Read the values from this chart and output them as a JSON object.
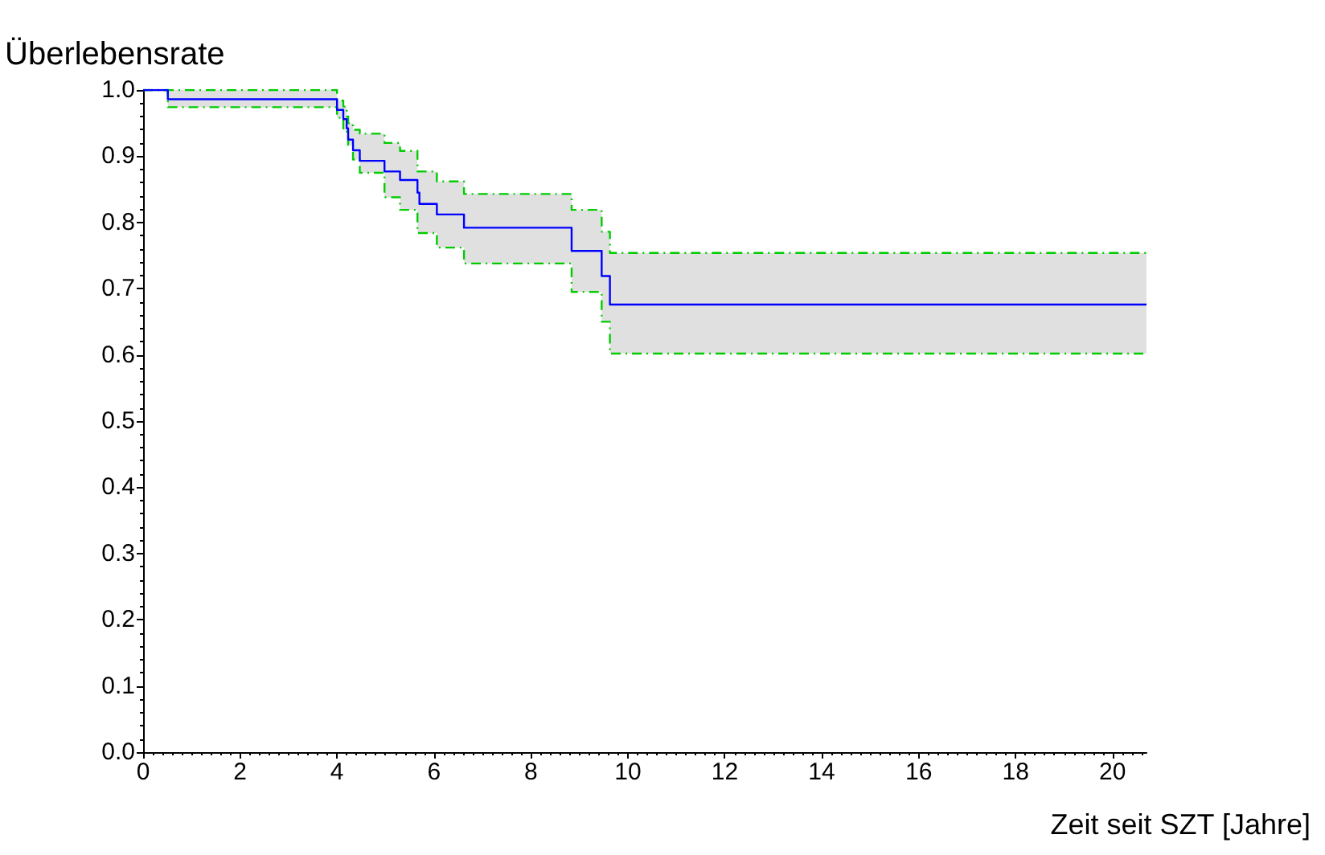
{
  "chart_data": {
    "type": "step",
    "ylabel": "Überlebensrate",
    "xlabel": "Zeit seit SZT [Jahre]",
    "xlim": [
      0,
      20.7
    ],
    "xticks": [
      0,
      2,
      4,
      6,
      8,
      10,
      12,
      14,
      16,
      18,
      20
    ],
    "ylim": [
      0,
      1
    ],
    "yticks": [
      {
        "value": 0,
        "label": "0.0"
      },
      0.1,
      0.2,
      0.3,
      0.4,
      0.5,
      0.6,
      0.7,
      0.8,
      0.9,
      {
        "value": 1,
        "label": "1.0"
      }
    ],
    "grid": false,
    "marker": "none",
    "line_style": "solid",
    "series": [
      {
        "color": "#0000ff",
        "x": [
          0,
          0.51,
          4.0,
          4.13,
          4.2,
          4.23,
          4.33,
          4.47,
          4.98,
          5.3,
          5.66,
          5.7,
          6.06,
          6.62,
          8.84,
          9.46,
          9.63,
          20.7
        ],
        "values": [
          1.0,
          0.986,
          0.97,
          0.956,
          0.942,
          0.925,
          0.909,
          0.893,
          0.877,
          0.864,
          0.845,
          0.828,
          0.812,
          0.792,
          0.757,
          0.719,
          0.676,
          0.676
        ],
        "upper": [
          1.0,
          1.0,
          0.984,
          0.975,
          0.96,
          0.95,
          0.94,
          0.934,
          0.92,
          0.908,
          0.877,
          0.877,
          0.862,
          0.843,
          0.819,
          0.786,
          0.754,
          0.754
        ],
        "lower": [
          1.0,
          0.974,
          0.958,
          0.94,
          0.93,
          0.917,
          0.895,
          0.875,
          0.838,
          0.819,
          0.784,
          0.784,
          0.762,
          0.738,
          0.695,
          0.65,
          0.602,
          0.602
        ]
      },
      {
        "color": "#00cc00",
        "line_style": "dashed",
        "x": [
          0,
          0.51,
          4.0,
          4.13,
          4.2,
          4.23,
          4.33,
          4.47,
          4.98,
          5.3,
          5.66,
          5.7,
          6.06,
          6.62,
          8.84,
          9.46,
          9.63,
          20.7
        ],
        "values": [
          1.0,
          1.0,
          0.984,
          0.975,
          0.96,
          0.95,
          0.94,
          0.934,
          0.92,
          0.908,
          0.877,
          0.877,
          0.862,
          0.843,
          0.819,
          0.786,
          0.754,
          0.754
        ]
      },
      {
        "color": "#00cc00",
        "line_style": "dashed",
        "x": [
          0,
          0.51,
          4.0,
          4.13,
          4.2,
          4.23,
          4.33,
          4.47,
          4.98,
          5.3,
          5.66,
          5.7,
          6.06,
          6.62,
          8.84,
          9.46,
          9.63,
          20.7
        ],
        "values": [
          1.0,
          0.974,
          0.958,
          0.94,
          0.93,
          0.917,
          0.895,
          0.875,
          0.838,
          0.819,
          0.784,
          0.784,
          0.762,
          0.738,
          0.695,
          0.65,
          0.602,
          0.602
        ]
      }
    ]
  }
}
